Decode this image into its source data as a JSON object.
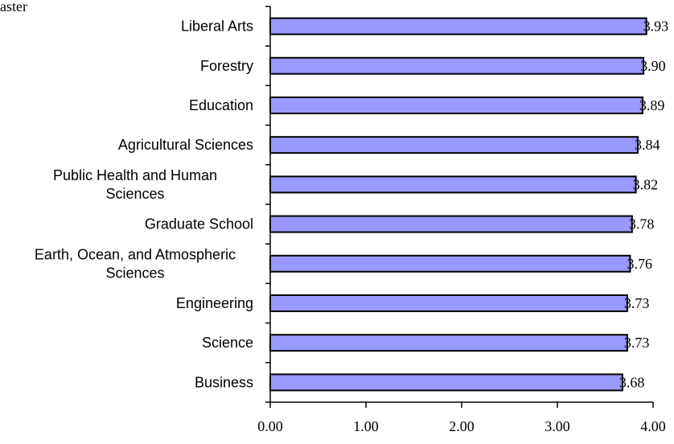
{
  "chart_data": {
    "type": "bar",
    "orientation": "horizontal",
    "title_fragment": "aster",
    "categories": [
      [
        "Liberal Arts"
      ],
      [
        "Forestry"
      ],
      [
        "Education"
      ],
      [
        "Agricultural Sciences"
      ],
      [
        "Public Health and Human",
        "Sciences"
      ],
      [
        "Graduate School"
      ],
      [
        "Earth, Ocean, and Atmospheric",
        "Sciences"
      ],
      [
        "Engineering"
      ],
      [
        "Science"
      ],
      [
        "Business"
      ]
    ],
    "values": [
      3.93,
      3.9,
      3.89,
      3.84,
      3.82,
      3.78,
      3.76,
      3.73,
      3.73,
      3.68
    ],
    "value_labels": [
      "3.93",
      "3.90",
      "3.89",
      "3.84",
      "3.82",
      "3.78",
      "3.76",
      "3.73",
      "3.73",
      "3.68"
    ],
    "xlim": [
      0,
      4
    ],
    "x_ticks": [
      0,
      1,
      2,
      3,
      4
    ],
    "x_tick_labels": [
      "0.00",
      "1.00",
      "2.00",
      "3.00",
      "4.00"
    ],
    "grid": false,
    "legend": "none",
    "bar_color": "#9999ff",
    "bar_border_color": "#000000"
  }
}
